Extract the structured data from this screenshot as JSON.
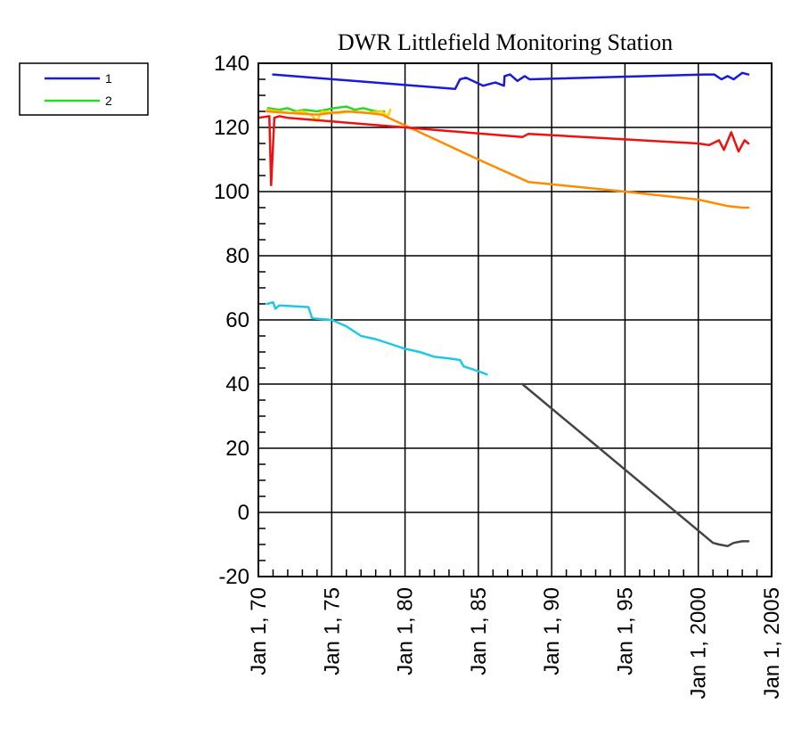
{
  "chart_data": {
    "type": "line",
    "title": "DWR Littlefield Monitoring Station",
    "xlabel": "",
    "ylabel": "",
    "xlim": [
      "1970-01-01",
      "2005-01-01"
    ],
    "ylim": [
      -20,
      140
    ],
    "grid": true,
    "legend_placement": "top-left, outside plot",
    "y_ticks": [
      {
        "value": -20,
        "label": "-20"
      },
      {
        "value": 0,
        "label": "0"
      },
      {
        "value": 20,
        "label": "20"
      },
      {
        "value": 40,
        "label": "40"
      },
      {
        "value": 60,
        "label": "60"
      },
      {
        "value": 80,
        "label": "80"
      },
      {
        "value": 100,
        "label": "100"
      },
      {
        "value": 120,
        "label": "120"
      },
      {
        "value": 140,
        "label": "140"
      }
    ],
    "x_ticks": [
      {
        "value": "1970-01-01",
        "label": "Jan 1, 70"
      },
      {
        "value": "1975-01-01",
        "label": "Jan 1, 75"
      },
      {
        "value": "1980-01-01",
        "label": "Jan 1, 80"
      },
      {
        "value": "1985-01-01",
        "label": "Jan 1, 85"
      },
      {
        "value": "1990-01-01",
        "label": "Jan 1, 90"
      },
      {
        "value": "1995-01-01",
        "label": "Jan 1, 95"
      },
      {
        "value": "2000-01-01",
        "label": "Jan 1, 2000"
      },
      {
        "value": "2005-01-01",
        "label": "Jan 1, 2005"
      }
    ],
    "legend": [
      {
        "name": "1",
        "color": "#1a1adc"
      },
      {
        "name": "2",
        "color": "#22dd22"
      }
    ],
    "series": [
      {
        "name": "1",
        "color": "#1a1adc",
        "points": [
          [
            "1971-01-01",
            136.5
          ],
          [
            "1983-06-01",
            132.0
          ],
          [
            "1983-10-01",
            135.0
          ],
          [
            "1984-03-01",
            135.5
          ],
          [
            "1985-05-01",
            133.0
          ],
          [
            "1986-03-01",
            134.0
          ],
          [
            "1986-10-01",
            133.0
          ],
          [
            "1986-10-15",
            136.0
          ],
          [
            "1987-03-01",
            136.5
          ],
          [
            "1987-09-01",
            134.5
          ],
          [
            "1988-03-01",
            136.0
          ],
          [
            "1988-07-01",
            135.0
          ],
          [
            "2000-06-01",
            136.5
          ],
          [
            "2001-02-01",
            136.5
          ],
          [
            "2001-08-01",
            135.0
          ],
          [
            "2002-01-01",
            136.0
          ],
          [
            "2002-06-01",
            135.0
          ],
          [
            "2003-01-01",
            137.0
          ],
          [
            "2003-06-01",
            136.5
          ]
        ]
      },
      {
        "name": "2",
        "color": "#22dd22",
        "points": [
          [
            "1970-09-01",
            126.0
          ],
          [
            "1971-06-01",
            125.5
          ],
          [
            "1972-01-01",
            126.0
          ],
          [
            "1972-08-01",
            125.0
          ],
          [
            "1973-03-01",
            125.5
          ],
          [
            "1974-01-01",
            125.0
          ],
          [
            "1974-08-01",
            125.5
          ],
          [
            "1975-03-01",
            126.0
          ],
          [
            "1976-01-01",
            126.5
          ],
          [
            "1976-08-01",
            125.5
          ],
          [
            "1977-03-01",
            126.0
          ],
          [
            "1978-01-01",
            125.0
          ],
          [
            "1978-08-01",
            125.0
          ]
        ]
      },
      {
        "name": "",
        "color": "#ffd400",
        "points": [
          [
            "1970-08-01",
            125.5
          ],
          [
            "1971-06-01",
            125.0
          ],
          [
            "1972-03-01",
            124.5
          ],
          [
            "1973-01-01",
            125.0
          ],
          [
            "1973-08-01",
            124.0
          ],
          [
            "1974-01-01",
            122.0
          ],
          [
            "1974-05-01",
            125.0
          ],
          [
            "1975-06-01",
            124.5
          ],
          [
            "1976-06-01",
            125.0
          ],
          [
            "1977-06-01",
            124.5
          ],
          [
            "1978-06-01",
            125.0
          ],
          [
            "1978-11-01",
            123.5
          ],
          [
            "1979-01-01",
            125.5
          ]
        ]
      },
      {
        "name": "",
        "color": "#ff8c00",
        "points": [
          [
            "1970-08-01",
            125.0
          ],
          [
            "1972-01-01",
            124.5
          ],
          [
            "1974-01-01",
            124.0
          ],
          [
            "1976-01-01",
            125.0
          ],
          [
            "1977-06-01",
            124.5
          ],
          [
            "1978-06-01",
            124.0
          ],
          [
            "1985-01-01",
            110.0
          ],
          [
            "1988-06-01",
            103.0
          ],
          [
            "1995-01-01",
            100.0
          ],
          [
            "2000-01-01",
            97.5
          ],
          [
            "2001-01-01",
            96.5
          ],
          [
            "2002-01-01",
            95.5
          ],
          [
            "2003-01-01",
            95.0
          ],
          [
            "2003-06-01",
            95.0
          ]
        ]
      },
      {
        "name": "",
        "color": "#ee1111",
        "points": [
          [
            "1970-01-01",
            123.0
          ],
          [
            "1970-10-01",
            123.5
          ],
          [
            "1970-11-15",
            102.0
          ],
          [
            "1971-02-01",
            123.0
          ],
          [
            "1971-06-01",
            123.5
          ],
          [
            "1972-01-01",
            123.0
          ],
          [
            "1980-01-01",
            120.0
          ],
          [
            "1988-01-01",
            117.0
          ],
          [
            "1988-06-01",
            118.0
          ],
          [
            "2000-01-01",
            115.0
          ],
          [
            "2000-10-01",
            114.5
          ],
          [
            "2001-06-01",
            116.0
          ],
          [
            "2001-10-01",
            113.0
          ],
          [
            "2002-04-01",
            118.5
          ],
          [
            "2002-10-01",
            112.5
          ],
          [
            "2003-03-01",
            116.0
          ],
          [
            "2003-06-01",
            115.0
          ]
        ]
      },
      {
        "name": "",
        "color": "#1ec8e8",
        "points": [
          [
            "1970-08-01",
            65.0
          ],
          [
            "1971-01-01",
            65.5
          ],
          [
            "1971-03-01",
            63.5
          ],
          [
            "1971-06-01",
            64.5
          ],
          [
            "1973-06-01",
            64.0
          ],
          [
            "1973-09-01",
            60.5
          ],
          [
            "1975-01-01",
            60.0
          ],
          [
            "1976-01-01",
            58.0
          ],
          [
            "1977-01-01",
            55.0
          ],
          [
            "1978-01-01",
            54.0
          ],
          [
            "1979-01-01",
            52.5
          ],
          [
            "1980-01-01",
            51.0
          ],
          [
            "1981-01-01",
            50.0
          ],
          [
            "1982-01-01",
            48.5
          ],
          [
            "1983-01-01",
            48.0
          ],
          [
            "1983-10-01",
            47.5
          ],
          [
            "1984-01-01",
            45.5
          ],
          [
            "1985-01-01",
            44.0
          ],
          [
            "1985-08-01",
            43.0
          ]
        ]
      },
      {
        "name": "",
        "color": "#444444",
        "points": [
          [
            "1988-01-01",
            40.0
          ],
          [
            "2001-01-01",
            -9.5
          ],
          [
            "2001-06-01",
            -10.0
          ],
          [
            "2002-01-01",
            -10.5
          ],
          [
            "2002-06-01",
            -9.5
          ],
          [
            "2003-01-01",
            -9.0
          ],
          [
            "2003-06-01",
            -9.0
          ]
        ]
      }
    ]
  }
}
